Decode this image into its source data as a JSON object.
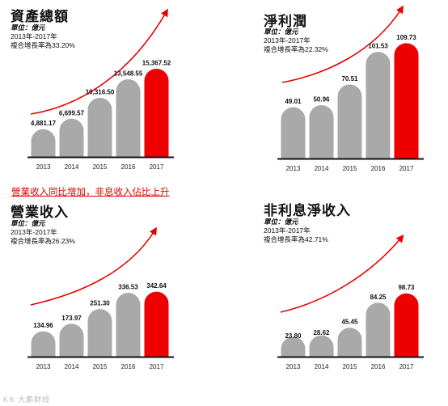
{
  "headline": "營業收入同比增加，非息收入佔比上升",
  "watermark": "K® 大鹏财经",
  "colors": {
    "bar_gray": "#a9a9a9",
    "bar_highlight": "#ee0000",
    "arrow": "#e80000",
    "headline": "#e00000",
    "baseline": "#111111"
  },
  "chart_data": [
    {
      "type": "bar",
      "title": "資產總額",
      "unit": "單位：億元",
      "period": "2013年-2017年",
      "cagr": "複合增長率為33.20%",
      "categories": [
        "2013",
        "2014",
        "2015",
        "2016",
        "2017"
      ],
      "values": [
        4881.17,
        6699.57,
        10316.5,
        13548.55,
        15367.52
      ],
      "value_labels": [
        "4,881.17",
        "6,699.57",
        "10,316.50",
        "13,548.55",
        "15,367.52"
      ],
      "highlight_index": 4,
      "ylim": [
        0,
        16000
      ],
      "trend_arrow": true
    },
    {
      "type": "bar",
      "title": "淨利潤",
      "unit": "單位：億元",
      "period": "2013年-2017年",
      "cagr": "複合增長率為22.32%",
      "categories": [
        "2013",
        "2014",
        "2015",
        "2016",
        "2017"
      ],
      "values": [
        49.01,
        50.96,
        70.51,
        101.53,
        109.73
      ],
      "value_labels": [
        "49.01",
        "50.96",
        "70.51",
        "101.53",
        "109.73"
      ],
      "highlight_index": 4,
      "ylim": [
        0,
        115
      ],
      "trend_arrow": true
    },
    {
      "type": "bar",
      "title": "營業收入",
      "unit": "單位：億元",
      "period": "2013年-2017年",
      "cagr": "複合增長率為26.23%",
      "categories": [
        "2013",
        "2014",
        "2015",
        "2016",
        "2017"
      ],
      "values": [
        134.96,
        173.97,
        251.3,
        336.53,
        342.64
      ],
      "value_labels": [
        "134.96",
        "173.97",
        "251.30",
        "336.53",
        "342.64"
      ],
      "highlight_index": 4,
      "ylim": [
        0,
        360
      ],
      "trend_arrow": true
    },
    {
      "type": "bar",
      "title": "非利息淨收入",
      "unit": "單位：億元",
      "period": "2013年-2017年",
      "cagr": "複合增長率為42.71%",
      "categories": [
        "2013",
        "2014",
        "2015",
        "2016",
        "2017"
      ],
      "values": [
        23.8,
        28.62,
        45.45,
        84.25,
        98.73
      ],
      "value_labels": [
        "23.80",
        "28.62",
        "45.45",
        "84.25",
        "98.73"
      ],
      "highlight_index": 4,
      "ylim": [
        0,
        104
      ],
      "trend_arrow": true
    }
  ]
}
